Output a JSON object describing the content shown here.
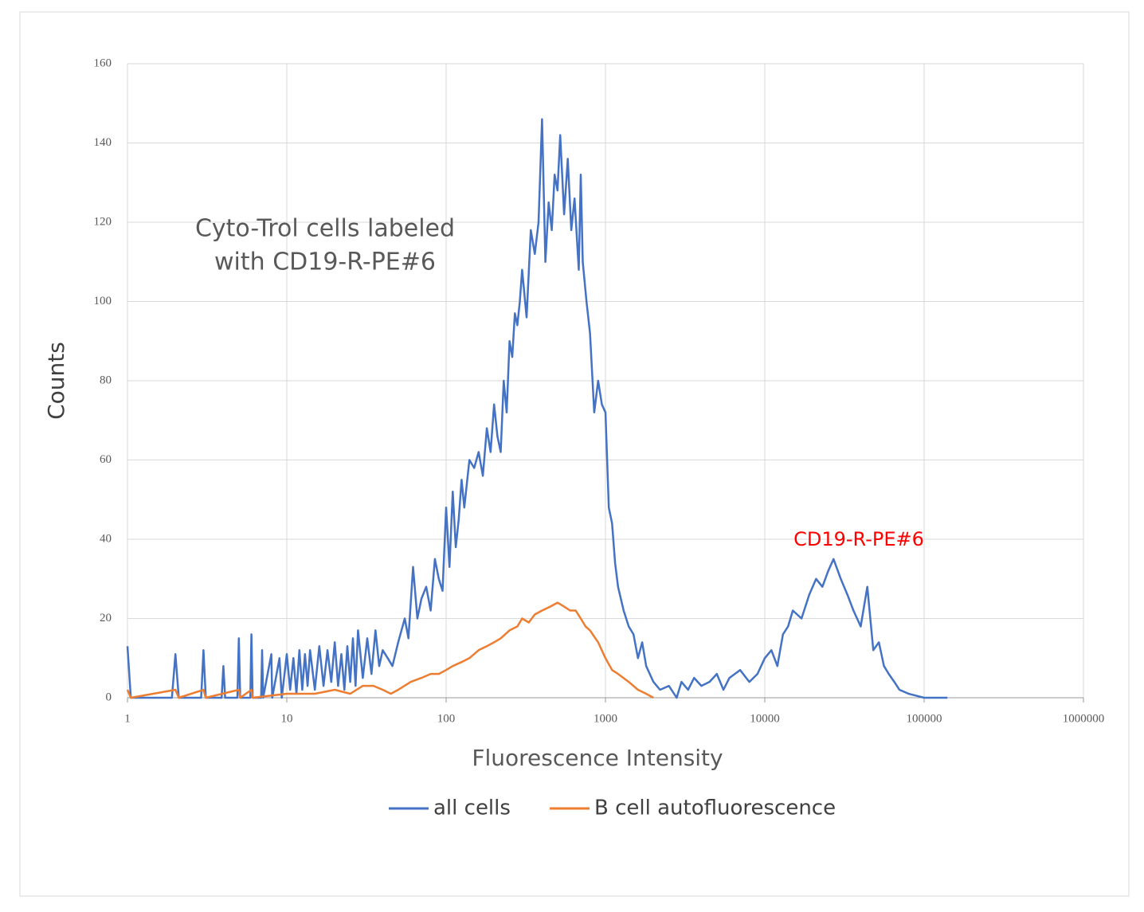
{
  "chart_data": {
    "type": "line",
    "log_x": true,
    "grid": true,
    "legend": "bottom",
    "xlabel": "Fluorescence Intensity",
    "ylabel": "Counts",
    "annotations": [
      {
        "lines": [
          "Cyto-Trol cells labeled",
          "with CD19-R-PE#6"
        ],
        "color": "#595959"
      },
      {
        "lines": [
          "CD19-R-PE#6"
        ],
        "color": "#ff0000"
      }
    ],
    "xlim": [
      1,
      1000000
    ],
    "xticks": [
      1,
      10,
      100,
      1000,
      10000,
      100000,
      1000000
    ],
    "ylim": [
      0,
      160
    ],
    "yticks": [
      0,
      20,
      40,
      60,
      80,
      100,
      120,
      140,
      160
    ],
    "series": [
      {
        "name": "all cells",
        "color": "#4472c4",
        "x": [
          1,
          1.05,
          1.9,
          2,
          2.1,
          2.9,
          3,
          3.1,
          3.9,
          4,
          4.1,
          4.9,
          5,
          5.1,
          5.9,
          6,
          6.1,
          6.9,
          7,
          7.1,
          8,
          8.1,
          9,
          9.3,
          10,
          10.5,
          11,
          11.5,
          12,
          12.5,
          13,
          13.5,
          14,
          15,
          16,
          17,
          18,
          19,
          20,
          21,
          22,
          23,
          24,
          25,
          26,
          27,
          28,
          30,
          32,
          34,
          36,
          38,
          40,
          43,
          46,
          50,
          55,
          58,
          62,
          66,
          70,
          75,
          80,
          85,
          90,
          95,
          100,
          105,
          110,
          115,
          120,
          125,
          130,
          140,
          150,
          160,
          170,
          180,
          190,
          200,
          210,
          220,
          230,
          240,
          250,
          260,
          270,
          280,
          290,
          300,
          320,
          340,
          360,
          380,
          400,
          420,
          440,
          460,
          480,
          500,
          520,
          550,
          580,
          610,
          640,
          680,
          700,
          720,
          760,
          800,
          850,
          900,
          950,
          1000,
          1050,
          1100,
          1150,
          1200,
          1300,
          1400,
          1500,
          1600,
          1700,
          1800,
          2000,
          2200,
          2500,
          2800,
          3000,
          3300,
          3600,
          4000,
          4500,
          5000,
          5500,
          6000,
          7000,
          8000,
          9000,
          10000,
          11000,
          12000,
          13000,
          14000,
          15000,
          17000,
          19000,
          21000,
          23000,
          25000,
          27000,
          30000,
          33000,
          36000,
          40000,
          44000,
          48000,
          52000,
          56000,
          60000,
          65000,
          70000,
          80000,
          100000,
          140000
        ],
        "values": [
          13,
          0,
          0,
          11,
          0,
          0,
          12,
          0,
          0,
          8,
          0,
          0,
          15,
          0,
          0,
          16,
          0,
          0,
          12,
          0,
          11,
          0,
          10,
          0,
          11,
          2,
          10,
          1,
          12,
          2,
          11,
          3,
          12,
          2,
          13,
          3,
          12,
          4,
          14,
          3,
          11,
          2,
          13,
          4,
          15,
          3,
          17,
          5,
          15,
          6,
          17,
          8,
          12,
          10,
          8,
          14,
          20,
          15,
          33,
          20,
          25,
          28,
          22,
          35,
          30,
          27,
          48,
          33,
          52,
          38,
          45,
          55,
          48,
          60,
          58,
          62,
          56,
          68,
          62,
          74,
          66,
          62,
          80,
          72,
          90,
          86,
          97,
          94,
          100,
          108,
          96,
          118,
          112,
          120,
          146,
          110,
          125,
          118,
          132,
          128,
          142,
          122,
          136,
          118,
          126,
          108,
          132,
          110,
          100,
          92,
          72,
          80,
          74,
          72,
          48,
          44,
          34,
          28,
          22,
          18,
          16,
          10,
          14,
          8,
          4,
          2,
          3,
          0,
          4,
          2,
          5,
          3,
          4,
          6,
          2,
          5,
          7,
          4,
          6,
          10,
          12,
          8,
          16,
          18,
          22,
          20,
          26,
          30,
          28,
          32,
          35,
          30,
          26,
          22,
          18,
          28,
          12,
          14,
          8,
          6,
          4,
          2,
          1,
          0,
          0
        ]
      },
      {
        "name": "B cell autofluorescence",
        "color": "#ed7d31",
        "x": [
          1,
          1.05,
          2,
          2.1,
          3,
          3.1,
          5,
          5.1,
          6,
          6.1,
          10,
          15,
          20,
          25,
          30,
          35,
          40,
          45,
          50,
          60,
          70,
          80,
          90,
          100,
          110,
          125,
          140,
          160,
          180,
          200,
          220,
          250,
          280,
          300,
          330,
          360,
          400,
          450,
          500,
          550,
          600,
          650,
          700,
          750,
          800,
          900,
          1000,
          1100,
          1200,
          1400,
          1600,
          1800,
          2000
        ],
        "values": [
          2,
          0,
          2,
          0,
          2,
          0,
          2,
          0,
          2,
          0,
          1,
          1,
          2,
          1,
          3,
          3,
          2,
          1,
          2,
          4,
          5,
          6,
          6,
          7,
          8,
          9,
          10,
          12,
          13,
          14,
          15,
          17,
          18,
          20,
          19,
          21,
          22,
          23,
          24,
          23,
          22,
          22,
          20,
          18,
          17,
          14,
          10,
          7,
          6,
          4,
          2,
          1,
          0
        ]
      }
    ]
  }
}
